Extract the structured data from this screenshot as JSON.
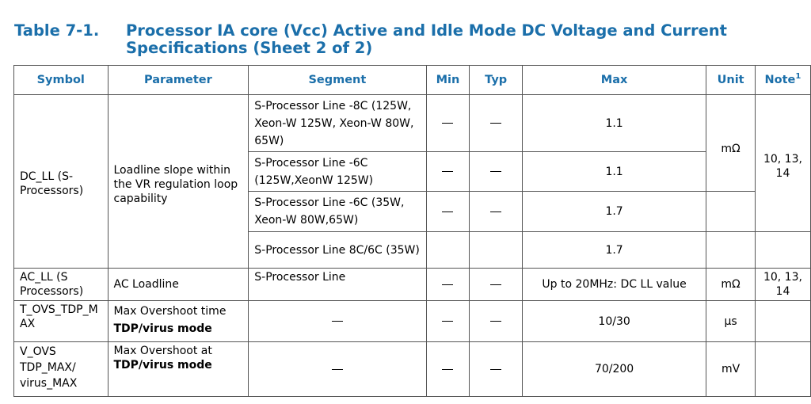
{
  "caption": {
    "number": "Table 7-1.",
    "title_line1": "Processor IA core (Vcc) Active and Idle Mode DC Voltage and Current",
    "title_line2": "Specifications (Sheet 2 of 2)"
  },
  "headers": {
    "symbol": "Symbol",
    "parameter": "Parameter",
    "segment": "Segment",
    "min": "Min",
    "typ": "Typ",
    "max": "Max",
    "unit": "Unit",
    "note": "Note",
    "note_sup": "1"
  },
  "dash": "—",
  "rows": {
    "dc_ll": {
      "symbol": "DC_LL (S-Processors)",
      "parameter": "Loadline slope within the VR regulation loop capability",
      "unit": "mΩ",
      "note": "10, 13, 14",
      "segments": [
        {
          "segment": "S-Processor Line -8C (125W, Xeon-W 125W, Xeon-W 80W, 65W)",
          "max": "1.1"
        },
        {
          "segment": "S-Processor Line -6C (125W,XeonW 125W)",
          "max": "1.1"
        },
        {
          "segment": "S-Processor Line -6C (35W, Xeon-W 80W,65W)",
          "max": "1.7"
        },
        {
          "segment": "S-Processor Line 8C/6C (35W)",
          "max": "1.7"
        }
      ]
    },
    "ac_ll": {
      "symbol": "AC_LL (S Processors)",
      "parameter": "AC Loadline",
      "segment": "S-Processor Line",
      "max": "Up to 20MHz: DC LL value",
      "unit": "mΩ",
      "note": "10, 13, 14"
    },
    "t_ovs": {
      "symbol": "T_OVS_TDP_MAX",
      "parameter": "Max Overshoot time",
      "parameter_bold": "TDP/virus mode",
      "max": "10/30",
      "unit": "µs",
      "note": ""
    },
    "v_ovs": {
      "symbol": "V_OVS TDP_MAX/ virus_MAX",
      "parameter": "Max Overshoot at",
      "parameter_bold": "TDP/virus mode",
      "max": "70/200",
      "unit": "mV",
      "note": ""
    }
  }
}
